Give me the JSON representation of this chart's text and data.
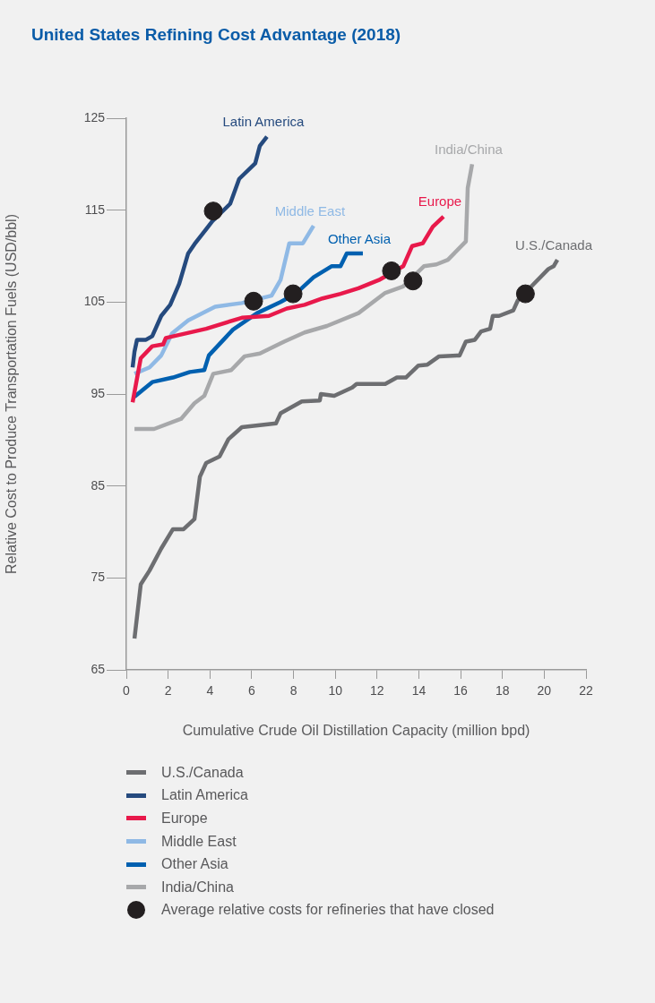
{
  "chart_data": {
    "type": "line",
    "title": "United States Refining Cost Advantage (2018)",
    "xlabel": "Cumulative Crude Oil Distillation Capacity (million bpd)",
    "ylabel": "Relative Cost to Produce Transportation Fuels (USD/bbl)",
    "xlim": [
      0,
      22
    ],
    "xticks": [
      0,
      2,
      4,
      6,
      8,
      10,
      12,
      14,
      16,
      18,
      20,
      22
    ],
    "ylim": [
      65,
      125
    ],
    "yticks": [
      65,
      75,
      85,
      95,
      105,
      115,
      125
    ],
    "grid": false,
    "legend": "bottom",
    "line_style": "solid",
    "series": [
      {
        "name": "U.S./Canada",
        "color": "#6d6e71",
        "x": [
          0.39,
          0.69,
          1.11,
          1.67,
          2.23,
          2.74,
          3.26,
          3.52,
          3.82,
          4.46,
          4.89,
          5.53,
          7.16,
          7.38,
          8.4,
          9.26,
          9.31,
          9.95,
          10.81,
          11.02,
          12.39,
          12.95,
          13.38,
          13.98,
          14.41,
          14.97,
          15.95,
          16.25,
          16.68,
          16.98,
          17.41,
          17.54,
          17.84,
          18.52,
          18.74,
          20.2,
          20.45,
          20.63
        ],
        "values": [
          68.4,
          74.3,
          75.8,
          78.2,
          80.3,
          80.3,
          81.4,
          86,
          87.5,
          88.2,
          90.1,
          91.4,
          91.8,
          92.9,
          94.2,
          94.3,
          95,
          94.8,
          95.7,
          96.1,
          96.1,
          96.8,
          96.8,
          98.1,
          98.2,
          99.1,
          99.2,
          100.7,
          100.9,
          101.8,
          102.1,
          103.5,
          103.5,
          104.1,
          105.2,
          108.6,
          108.9,
          109.6
        ]
      },
      {
        "name": "Latin America",
        "color": "#254a7e",
        "x": [
          0.3,
          0.39,
          0.51,
          0.94,
          1.24,
          1.67,
          2.1,
          2.53,
          2.96,
          3.26,
          4.12,
          4.97,
          5.4,
          6.17,
          6.39,
          6.73
        ],
        "values": [
          97.9,
          99.6,
          100.9,
          100.9,
          101.3,
          103.5,
          104.7,
          107,
          110.3,
          111.3,
          113.8,
          115.7,
          118.4,
          120.1,
          122,
          123
        ]
      },
      {
        "name": "Europe",
        "color": "#e8194b",
        "x": [
          0.3,
          0.69,
          1.24,
          1.76,
          1.89,
          3.82,
          5.53,
          6.82,
          7.68,
          8.53,
          9.39,
          10.25,
          11.11,
          12.09,
          13.25,
          13.68,
          14.19,
          14.67,
          15.18
        ],
        "values": [
          94.1,
          98.9,
          100.2,
          100.4,
          101.1,
          102.1,
          103.3,
          103.5,
          104.3,
          104.7,
          105.4,
          105.9,
          106.5,
          107.4,
          108.9,
          111.1,
          111.4,
          113.2,
          114.3
        ]
      },
      {
        "name": "Middle East",
        "color": "#8fb9e5",
        "x": [
          0.39,
          1.11,
          1.67,
          2.19,
          2.96,
          4.25,
          5.53,
          6.95,
          7.38,
          7.8,
          8.45,
          8.96
        ],
        "values": [
          97.2,
          97.9,
          99.2,
          101.6,
          103,
          104.5,
          104.9,
          105.7,
          107.4,
          111.4,
          111.4,
          113.3
        ]
      },
      {
        "name": "Other Asia",
        "color": "#0060b0",
        "x": [
          0.39,
          1.24,
          2.23,
          3.04,
          3.73,
          3.95,
          5.1,
          6.26,
          7.38,
          8.1,
          8.96,
          9.82,
          10.25,
          10.55,
          11.32
        ],
        "values": [
          94.7,
          96.3,
          96.8,
          97.4,
          97.6,
          99.2,
          102,
          103.8,
          105,
          105.9,
          107.7,
          108.9,
          108.9,
          110.3,
          110.3
        ]
      },
      {
        "name": "India/China",
        "color": "#a7a8aa",
        "x": [
          0.39,
          1.33,
          2.62,
          3.26,
          3.73,
          4.16,
          5.02,
          5.66,
          6.39,
          7.55,
          8.53,
          9.6,
          11.11,
          12.39,
          13.25,
          14.24,
          14.84,
          15.39,
          16.25,
          16.34,
          16.55
        ],
        "values": [
          91.2,
          91.2,
          92.3,
          94,
          94.8,
          97.2,
          97.6,
          99.1,
          99.4,
          100.7,
          101.7,
          102.4,
          103.8,
          106,
          106.7,
          108.9,
          109.1,
          109.6,
          111.6,
          117.4,
          120
        ]
      },
      {
        "name": "Average relative costs for refineries that have closed",
        "type": "scatter",
        "marker": "circle",
        "color": "#231f20",
        "x": [
          4.16,
          6.09,
          7.98,
          12.69,
          13.72,
          19.1
        ],
        "values": [
          114.9,
          105.1,
          105.9,
          108.4,
          107.3,
          105.9
        ]
      }
    ]
  }
}
